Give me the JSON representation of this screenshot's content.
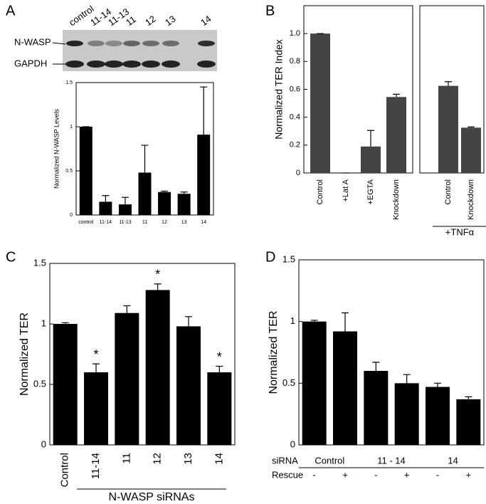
{
  "panel_labels": [
    "A",
    "B",
    "C",
    "D"
  ],
  "blot": {
    "lanes": [
      "control",
      "11-14",
      "11-13",
      "11",
      "12",
      "13",
      "14"
    ],
    "rows": [
      "N-WASP",
      "GAPDH"
    ]
  },
  "chart_data": [
    {
      "type": "bar",
      "y_label": "Normalized N-WASP Levels",
      "categories": [
        "control",
        "11-14",
        "11-13",
        "11",
        "12",
        "13",
        "14"
      ],
      "values": [
        1.0,
        0.15,
        0.12,
        0.48,
        0.26,
        0.24,
        0.91
      ],
      "errors": [
        0.0,
        0.07,
        0.08,
        0.31,
        0.01,
        0.02,
        0.54
      ],
      "color": "#000000",
      "ylim": [
        0,
        1.5
      ],
      "yticks": [
        0,
        0.5,
        1,
        1.5
      ]
    },
    {
      "type": "bar",
      "y_label": "Normalized TER Index",
      "categories": [
        "Control",
        "+Lat A",
        "+EGTA",
        "Knockdown",
        "Control",
        "Knockdown"
      ],
      "values": [
        1.0,
        0.0,
        0.19,
        0.545,
        0.625,
        0.325
      ],
      "errors": [
        0.0,
        0.0,
        0.115,
        0.02,
        0.03,
        0.005
      ],
      "groups": [
        {
          "name": "+TNFα",
          "categories": [
            4,
            5
          ]
        }
      ],
      "color": "#444444",
      "ylim": [
        0,
        1.2
      ],
      "yticks": [
        0,
        0.2,
        0.4,
        0.6,
        0.8,
        {
          "value": 1,
          "label": "1.0"
        }
      ]
    },
    {
      "type": "bar",
      "y_label": "Normalized TER",
      "x_label": "N-WASP siRNAs",
      "categories": [
        "Control",
        "11-14",
        "11",
        "12",
        "13",
        "14"
      ],
      "values": [
        1.0,
        0.6,
        1.09,
        1.28,
        0.98,
        0.6
      ],
      "errors": [
        0.01,
        0.07,
        0.06,
        0.05,
        0.08,
        0.05
      ],
      "markers": [
        {
          "index": 1,
          "text": "*"
        },
        {
          "index": 3,
          "text": "*"
        },
        {
          "index": 5,
          "text": "*"
        }
      ],
      "color": "#000000",
      "ylim": [
        0,
        1.5
      ],
      "yticks": [
        0,
        0.5,
        1,
        1.5
      ]
    },
    {
      "type": "bar",
      "y_label": "Normalized TER",
      "row_labels": [
        "siRNA",
        "Rescue"
      ],
      "categories": [
        "-",
        "+",
        "-",
        "+",
        "-",
        "+"
      ],
      "values": [
        1.0,
        0.92,
        0.6,
        0.5,
        0.47,
        0.37
      ],
      "errors": [
        0.01,
        0.15,
        0.07,
        0.07,
        0.03,
        0.02
      ],
      "groups": [
        {
          "name": "Control",
          "categories": [
            0,
            1
          ]
        },
        {
          "name": "11 - 14",
          "categories": [
            2,
            3
          ]
        },
        {
          "name": "14",
          "categories": [
            4,
            5
          ]
        }
      ],
      "color": "#000000",
      "ylim": [
        0,
        1.5
      ],
      "yticks": [
        0,
        0.5,
        1,
        1.5
      ]
    }
  ]
}
